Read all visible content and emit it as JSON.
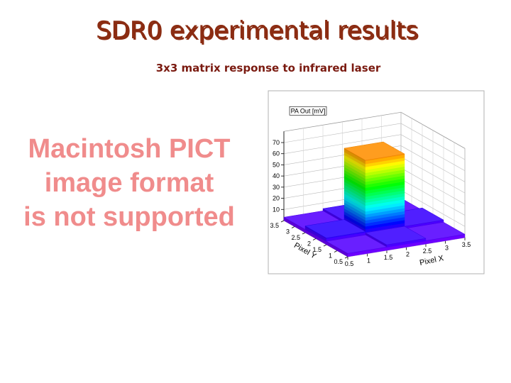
{
  "header": {
    "title": "SDR0 experimental results",
    "subtitle": "3x3 matrix response to infrared laser"
  },
  "placeholder": {
    "lines": [
      "Macintosh PICT",
      "image format",
      "is not supported"
    ]
  },
  "plot": {
    "type": "lego",
    "z_title": "PA Out [mV]",
    "x_title": "Pixel X",
    "y_title": "Pixel Y",
    "xlim": [
      0.5,
      3.5
    ],
    "ylim": [
      0.5,
      3.5
    ],
    "zlim": [
      0,
      80
    ],
    "xticks": [
      0.5,
      1,
      1.5,
      2,
      2.5,
      3,
      3.5
    ],
    "yticks": [
      0.5,
      1,
      1.5,
      2,
      2.5,
      3,
      3.5
    ],
    "zticks": [
      10,
      20,
      30,
      40,
      50,
      60,
      70
    ],
    "values": [
      [
        3,
        5,
        3
      ],
      [
        6,
        70,
        5
      ],
      [
        3,
        5,
        3
      ]
    ]
  }
}
